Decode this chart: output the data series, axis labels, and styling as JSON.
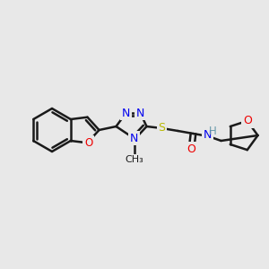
{
  "background_color": "#e8e8e8",
  "bond_color": "#1a1a1a",
  "bond_width": 1.8,
  "atom_colors": {
    "N": "#0000ee",
    "O": "#ee0000",
    "S": "#b8b800",
    "H": "#6699aa",
    "C": "#1a1a1a"
  },
  "font_size": 8.5,
  "figsize": [
    3.0,
    3.0
  ],
  "dpi": 100,
  "scale": 1.0
}
